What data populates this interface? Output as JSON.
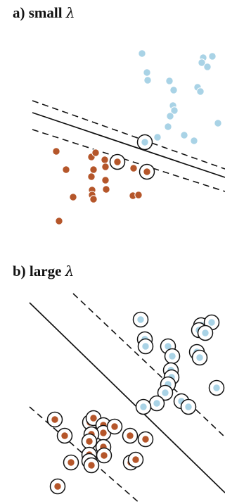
{
  "colors": {
    "class_blue": "#a9d3e6",
    "class_orange": "#b5562a",
    "line": "#111111",
    "background": "#ffffff"
  },
  "panels": [
    {
      "id": "a",
      "prefix": "a) small",
      "symbol": "λ",
      "blue_points": [
        [
          202,
          76
        ],
        [
          209,
          103
        ],
        [
          210,
          114
        ],
        [
          241,
          115
        ],
        [
          247,
          128
        ],
        [
          289,
          82
        ],
        [
          287,
          89
        ],
        [
          302,
          80
        ],
        [
          295,
          95
        ],
        [
          281,
          124
        ],
        [
          285,
          130
        ],
        [
          246,
          150
        ],
        [
          248,
          157
        ],
        [
          242,
          165
        ],
        [
          239,
          180
        ],
        [
          224,
          195
        ],
        [
          262,
          192
        ],
        [
          276,
          200
        ],
        [
          310,
          175
        ]
      ],
      "orange_points": [
        [
          80,
          215
        ],
        [
          94,
          241
        ],
        [
          84,
          314
        ],
        [
          104,
          280
        ],
        [
          130,
          223
        ],
        [
          136,
          217
        ],
        [
          149,
          227
        ],
        [
          150,
          237
        ],
        [
          163,
          229
        ],
        [
          190,
          239
        ],
        [
          133,
          241
        ],
        [
          130,
          251
        ],
        [
          131,
          270
        ],
        [
          131,
          277
        ],
        [
          133,
          283
        ],
        [
          150,
          256
        ],
        [
          151,
          269
        ],
        [
          189,
          278
        ],
        [
          197,
          277
        ]
      ],
      "circled_points": [
        [
          206,
          202,
          "blue"
        ],
        [
          167,
          230,
          "orange"
        ],
        [
          209,
          244,
          "orange"
        ]
      ],
      "solid_line": [
        [
          46,
          160
        ],
        [
          320,
          252
        ]
      ],
      "dashed_lines": [
        [
          [
            46,
            143
          ],
          [
            320,
            240
          ]
        ],
        [
          [
            46,
            184
          ],
          [
            320,
            272
          ]
        ]
      ]
    },
    {
      "id": "b",
      "prefix": "b) large",
      "symbol": "λ",
      "blue_points": [
        [
          200,
          454
        ],
        [
          206,
          482
        ],
        [
          207,
          492
        ],
        [
          239,
          492
        ],
        [
          245,
          506
        ],
        [
          286,
          462
        ],
        [
          283,
          469
        ],
        [
          301,
          458
        ],
        [
          292,
          473
        ],
        [
          280,
          500
        ],
        [
          284,
          508
        ],
        [
          243,
          526
        ],
        [
          244,
          536
        ],
        [
          239,
          546
        ],
        [
          235,
          558
        ],
        [
          223,
          573
        ],
        [
          258,
          570
        ],
        [
          268,
          578
        ],
        [
          308,
          551
        ],
        [
          204,
          578
        ]
      ],
      "orange_points": [
        [
          78,
          596
        ],
        [
          92,
          619
        ],
        [
          82,
          691
        ],
        [
          101,
          657
        ],
        [
          128,
          600
        ],
        [
          133,
          594
        ],
        [
          147,
          604
        ],
        [
          147,
          615
        ],
        [
          163,
          606
        ],
        [
          185,
          619
        ],
        [
          207,
          624
        ],
        [
          130,
          617
        ],
        [
          127,
          627
        ],
        [
          127,
          646
        ],
        [
          127,
          655
        ],
        [
          130,
          661
        ],
        [
          147,
          635
        ],
        [
          148,
          647
        ],
        [
          186,
          657
        ],
        [
          193,
          653
        ]
      ],
      "solid_line": [
        [
          42,
          430
        ],
        [
          320,
          700
        ]
      ],
      "dashed_lines": [
        [
          [
            104,
            417
          ],
          [
            320,
            621
          ]
        ],
        [
          [
            42,
            578
          ],
          [
            200,
            716
          ]
        ]
      ]
    }
  ]
}
